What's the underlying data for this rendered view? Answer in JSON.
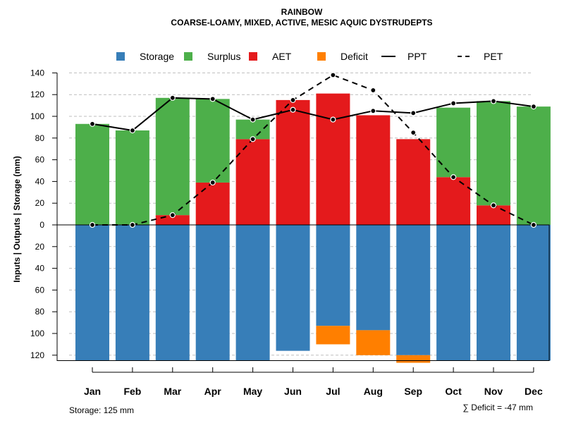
{
  "chart_data": {
    "type": "bar",
    "title": "RAINBOW",
    "subtitle": "COARSE-LOAMY, MIXED, ACTIVE, MESIC AQUIC DYSTRUDEPTS",
    "ylabel": "Inputs | Outputs | Storage    (mm)",
    "ylim": [
      -130,
      140
    ],
    "yticks": [
      140,
      120,
      100,
      80,
      60,
      40,
      20,
      0,
      -20,
      -40,
      -60,
      -80,
      -100,
      -120
    ],
    "ytick_labels": [
      "140",
      "120",
      "100",
      "80",
      "60",
      "40",
      "20",
      "0",
      "20",
      "40",
      "60",
      "80",
      "100",
      "120"
    ],
    "categories": [
      "Jan",
      "Feb",
      "Mar",
      "Apr",
      "May",
      "Jun",
      "Jul",
      "Aug",
      "Sep",
      "Oct",
      "Nov",
      "Dec"
    ],
    "legend": [
      {
        "label": "Storage",
        "kind": "box",
        "color": "#377eb8"
      },
      {
        "label": "Surplus",
        "kind": "box",
        "color": "#4daf4a"
      },
      {
        "label": "AET",
        "kind": "box",
        "color": "#e41a1c"
      },
      {
        "label": "Deficit",
        "kind": "box",
        "color": "#ff7f00"
      },
      {
        "label": "PPT",
        "kind": "solid",
        "color": "#000000"
      },
      {
        "label": "PET",
        "kind": "dashed",
        "color": "#000000"
      }
    ],
    "series": [
      {
        "name": "AET",
        "color": "#e41a1c",
        "values": [
          0,
          0,
          9,
          39,
          79,
          115,
          121,
          101,
          79,
          44,
          18,
          0
        ]
      },
      {
        "name": "Surplus",
        "color": "#4daf4a",
        "values": [
          93,
          87,
          108,
          77,
          18,
          0,
          0,
          0,
          0,
          64,
          96,
          109
        ]
      },
      {
        "name": "Storage",
        "color": "#377eb8",
        "values": [
          125,
          125,
          125,
          125,
          125,
          116,
          93,
          97,
          120,
          125,
          125,
          125
        ]
      },
      {
        "name": "Deficit",
        "color": "#ff7f00",
        "values": [
          0,
          0,
          0,
          0,
          0,
          0,
          17,
          23,
          7,
          0,
          0,
          0
        ]
      },
      {
        "name": "PPT",
        "color": "#000000",
        "values": [
          93,
          87,
          117,
          116,
          97,
          106,
          97,
          105,
          103,
          112,
          114,
          109
        ]
      },
      {
        "name": "PET",
        "color": "#000000",
        "values": [
          0,
          0,
          9,
          39,
          79,
          115,
          138,
          124,
          85,
          44,
          18,
          0
        ]
      }
    ],
    "storage_capacity": 125,
    "storage_note": "Storage: 125 mm",
    "deficit_note": "∑ Deficit = -47 mm",
    "grid": true
  }
}
